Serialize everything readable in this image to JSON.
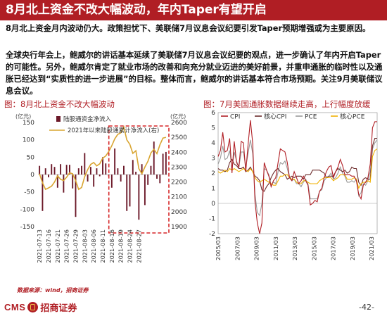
{
  "slide": {
    "title": "8月北上资金不改大幅波动，年内Taper有望开启",
    "para1": "8月北上资金月内波动仍大。政策担忧下、美联储7月议息会议纪要引发Taper预期增强或为主要原因。",
    "para2": "全球央行年会上，鲍威尔的讲话基本延续了美联储7月议息会议纪要的观点，进一步确认了年内开启Taper的可能性。另外，鲍威尔肯定了就业市场的改善和向充分就业迈进的美好前景，并重申通胀的临时性以及通胀已经达到“实质性的进一步进展”的目标。整体而言，鲍威尔的讲话基本符合市场预期。关注9月美联储议息会议。",
    "source": "数据来源：wind，招商证券",
    "logo_en": "CMS",
    "logo_cn": "招商证券",
    "page": "-42-"
  },
  "colors": {
    "brand": "#b01e24",
    "bar": "#6b1828",
    "gold": "#d9a531",
    "cpi": "#b01e24",
    "core_pce": "#f0b100",
    "pce": "#9a9a9a",
    "core_cpi": "#6b2a2a",
    "highlight_box": "#d62728"
  },
  "chart_data": [
    {
      "type": "bar",
      "title": "图：8月北上资金不改大幅波动",
      "left_unit": "(亿元)",
      "right_unit": "(亿元)",
      "ylim_left": [
        -150,
        150
      ],
      "ylim_right": [
        1900,
        2600
      ],
      "yticks_left": [
        -150,
        -100,
        -50,
        0,
        50,
        100,
        150
      ],
      "yticks_right": [
        1900,
        2000,
        2100,
        2200,
        2300,
        2400,
        2500,
        2600
      ],
      "xtick_labels": [
        "2021-07-13",
        "2021-07-16",
        "2021-07-21",
        "2021-07-26",
        "2021-07-29",
        "2021-08-03",
        "2021-08-06",
        "2021-08-11",
        "2021-08-16",
        "2021-08-19",
        "2021-08-24",
        "2021-08-27"
      ],
      "series": [
        {
          "name": "陆股通资金净流入",
          "kind": "bar",
          "axis": "left",
          "values": [
            25,
            -105,
            18,
            -8,
            30,
            22,
            -38,
            30,
            -52,
            28,
            28,
            -40,
            -122,
            18,
            25,
            62,
            -20,
            22,
            -35,
            18,
            -5,
            50,
            32,
            -5,
            -38,
            75,
            18,
            -20,
            25,
            -105,
            -92,
            42,
            8,
            -130,
            30,
            -88,
            -30,
            25,
            95,
            -12,
            -25,
            60,
            65
          ]
        },
        {
          "name": "2021年以来陆股通累计净流入(右)",
          "kind": "line",
          "axis": "right",
          "values": [
            2255,
            2195,
            2150,
            2160,
            2172,
            2200,
            2242,
            2218,
            2210,
            2232,
            2262,
            2255,
            2210,
            2150,
            2163,
            2235,
            2283,
            2318,
            2331,
            2308,
            2322,
            2360,
            2375,
            2405,
            2443,
            2490,
            2520,
            2530,
            2570,
            2483,
            2453,
            2392,
            2410,
            2290,
            2255,
            2300,
            2339,
            2395,
            2420,
            2390,
            2450,
            2495,
            2500
          ]
        }
      ]
    },
    {
      "type": "line",
      "title": "图：7月美国通胀数据继续走高，上行幅度放缓",
      "ylim": [
        -2,
        6
      ],
      "yticks": [
        -2,
        -1,
        0,
        1,
        2,
        3,
        4,
        5,
        6
      ],
      "xtick_labels": [
        "2005/03",
        "2007/03",
        "2009/03",
        "2011/03",
        "2013/03",
        "2015/03",
        "2017/03",
        "2019/03",
        "2021/03"
      ],
      "x_start": 2005.0,
      "x_end": 2021.58,
      "series": [
        {
          "name": "CPI",
          "values": [
            3.1,
            3.5,
            4.7,
            3.4,
            3.5,
            4.3,
            2.0,
            4.1,
            2.7,
            2.4,
            4.1,
            4.0,
            2.1,
            3.9,
            5.5,
            4.0,
            0.1,
            -1.3,
            -2.0,
            -1.3,
            2.7,
            2.2,
            1.8,
            1.1,
            1.5,
            1.7,
            2.7,
            3.6,
            3.5,
            3.4,
            2.7,
            1.7,
            1.5,
            2.1,
            1.7,
            1.3,
            1.5,
            1.8,
            1.5,
            1.2,
            -0.1,
            0.0,
            0.2,
            0.1,
            0.8,
            1.0,
            1.7,
            2.1,
            2.4,
            2.5,
            1.7,
            2.1,
            2.4,
            2.9,
            2.5,
            1.9,
            1.9,
            1.9,
            1.8,
            1.8,
            1.5,
            0.6,
            0.3,
            1.2,
            1.4,
            1.7,
            2.6,
            5.0,
            5.4,
            5.4
          ]
        },
        {
          "name": "核心CPI",
          "values": [
            2.3,
            2.2,
            2.2,
            2.1,
            2.2,
            2.7,
            2.9,
            2.6,
            2.5,
            2.3,
            2.3,
            2.4,
            2.1,
            2.2,
            2.4,
            2.1,
            1.8,
            1.7,
            1.5,
            0.9,
            0.8,
            1.1,
            1.3,
            1.7,
            2.0,
            2.2,
            2.3,
            2.1,
            2.0,
            1.9,
            1.6,
            1.7,
            1.8,
            1.7,
            1.8,
            1.8,
            1.8,
            1.6,
            1.9,
            1.9,
            1.9,
            2.2,
            2.2,
            2.2,
            2.2,
            2.1,
            2.0,
            1.7,
            1.8,
            1.8,
            1.8,
            2.1,
            2.3,
            2.2,
            2.1,
            2.2,
            2.0,
            2.1,
            2.4,
            2.3,
            2.3,
            1.4,
            1.2,
            1.6,
            1.7,
            1.6,
            1.6,
            3.8,
            4.3,
            4.3
          ]
        },
        {
          "name": "PCE",
          "values": [
            2.6,
            3.0,
            3.8,
            2.9,
            3.0,
            3.5,
            2.3,
            3.4,
            2.8,
            2.4,
            3.4,
            3.4,
            2.4,
            3.3,
            4.2,
            3.3,
            0.6,
            -0.6,
            -0.8,
            0.0,
            2.3,
            2.2,
            1.9,
            1.2,
            1.4,
            1.3,
            2.1,
            2.7,
            2.6,
            2.8,
            2.3,
            1.7,
            1.5,
            1.6,
            1.3,
            1.3,
            1.1,
            1.4,
            1.6,
            1.3,
            0.3,
            0.3,
            0.3,
            0.3,
            0.8,
            0.9,
            1.5,
            1.7,
            1.8,
            2.0,
            1.6,
            1.7,
            2.0,
            2.4,
            2.0,
            1.8,
            1.4,
            1.4,
            1.5,
            1.4,
            1.6,
            0.5,
            0.7,
            1.3,
            1.2,
            1.5,
            2.1,
            3.6,
            4.0,
            4.2
          ]
        },
        {
          "name": "核心PCE",
          "values": [
            2.1,
            2.0,
            2.1,
            2.2,
            2.1,
            2.3,
            2.2,
            2.3,
            2.2,
            2.1,
            2.2,
            2.3,
            2.2,
            2.1,
            2.3,
            2.1,
            1.7,
            1.5,
            1.4,
            1.5,
            1.6,
            1.5,
            1.4,
            1.3,
            1.2,
            1.2,
            1.5,
            1.8,
            1.8,
            1.9,
            1.9,
            1.7,
            1.6,
            1.6,
            1.4,
            1.3,
            1.3,
            1.5,
            1.5,
            1.4,
            1.3,
            1.3,
            1.3,
            1.3,
            1.5,
            1.6,
            1.7,
            1.7,
            1.7,
            1.7,
            1.5,
            1.6,
            1.7,
            1.9,
            1.9,
            1.9,
            1.6,
            1.6,
            1.6,
            1.7,
            1.6,
            1.0,
            1.3,
            1.4,
            1.4,
            1.5,
            1.4,
            3.1,
            3.5,
            3.6
          ]
        }
      ]
    }
  ]
}
